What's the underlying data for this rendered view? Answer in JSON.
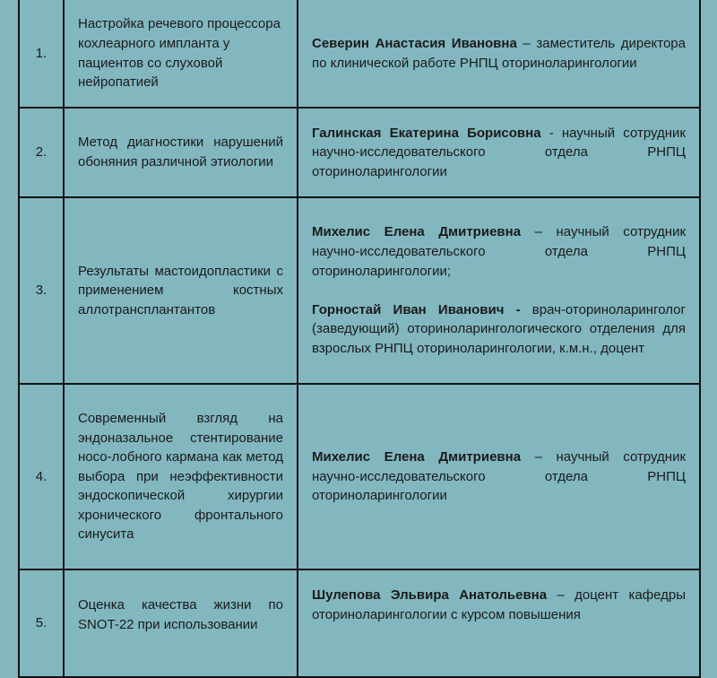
{
  "rows": [
    {
      "num": "1.",
      "topic": "Настройка речевого процессора кохлеарного импланта у пациентов со слуховой нейропатией",
      "authors": [
        {
          "name": "Северин Анастасия Ивановна",
          "desc": " – заместитель директора по клинической работе РНПЦ оториноларингологии"
        }
      ]
    },
    {
      "num": "2.",
      "topic": "Метод диагностики нарушений обоняния различной этиологии",
      "authors": [
        {
          "name": "Галинская Екатерина Борисовна",
          "desc": " - научный сотрудник научно-исследовательского отдела РНПЦ оториноларингологии"
        }
      ]
    },
    {
      "num": "3.",
      "topic": "Результаты мастоидопластики с применением костных аллотрансплантантов",
      "authors": [
        {
          "name": "Михелис Елена Дмитриевна",
          "desc": " – научный сотрудник научно-исследовательского отдела РНПЦ оториноларингологии;"
        },
        {
          "name": "Горностай Иван Иванович -",
          "desc": " врач-оториноларинголог (заведующий) оториноларингологического отделения для взрослых РНПЦ оториноларингологии, к.м.н., доцент"
        }
      ]
    },
    {
      "num": "4.",
      "topic": "Современный взгляд на эндоназальное стентирование носо-лобного кармана как метод выбора при неэффективности эндоскопической хирургии хронического фронтального синусита",
      "authors": [
        {
          "name": "Михелис Елена Дмитриевна",
          "desc": " – научный сотрудник научно-исследовательского отдела РНПЦ оториноларингологии"
        }
      ]
    },
    {
      "num": "5.",
      "topic": "Оценка качества жизни по SNOT-22 при использовании",
      "authors": [
        {
          "name": "Шулепова Эльвира Анатольевна",
          "desc": " – доцент кафедры оториноларингологии с курсом повышения"
        }
      ]
    }
  ]
}
